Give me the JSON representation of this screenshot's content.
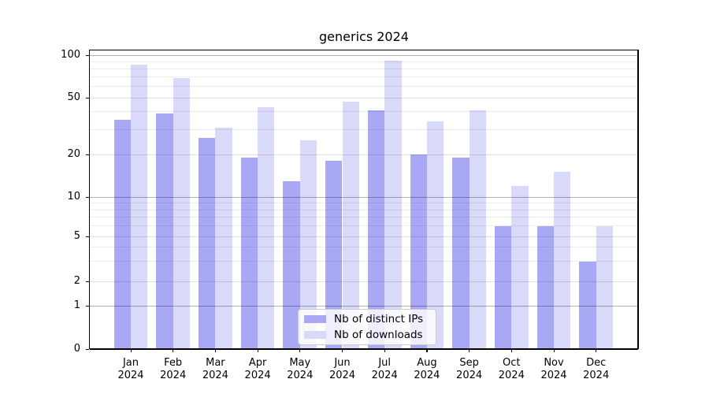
{
  "chart_data": {
    "type": "bar",
    "title": "generics 2024",
    "categories": [
      "Jan",
      "Feb",
      "Mar",
      "Apr",
      "May",
      "Jun",
      "Jul",
      "Aug",
      "Sep",
      "Oct",
      "Nov",
      "Dec"
    ],
    "category_year": "2024",
    "series": [
      {
        "name": "Nb of distinct IPs",
        "color": "#a8a8f4",
        "values": [
          35,
          39,
          26,
          19,
          13,
          18,
          41,
          20,
          19,
          6,
          6,
          3
        ]
      },
      {
        "name": "Nb of downloads",
        "color": "#d9d9f9",
        "values": [
          86,
          69,
          31,
          43,
          25,
          47,
          91,
          34,
          41,
          12,
          15,
          6
        ]
      }
    ],
    "y_ticks": [
      0,
      1,
      2,
      5,
      10,
      20,
      50,
      100
    ],
    "y_major_ticks": [
      1,
      10,
      100
    ],
    "y_minor_gridline_values": [
      3,
      4,
      6,
      7,
      8,
      9,
      30,
      40,
      60,
      70,
      80,
      90
    ],
    "y_scale": "symlog",
    "ylim": [
      0,
      110
    ],
    "xlabel": "",
    "ylabel": "",
    "grid": "both",
    "legend_position": "lower center",
    "colors": {
      "grid_major": "rgba(0,0,0,0.30)",
      "grid_mid": "rgba(0,0,0,0.12)",
      "grid_minor": "rgba(0,0,0,0.07)",
      "spine": "#000000",
      "background": "#ffffff"
    }
  }
}
